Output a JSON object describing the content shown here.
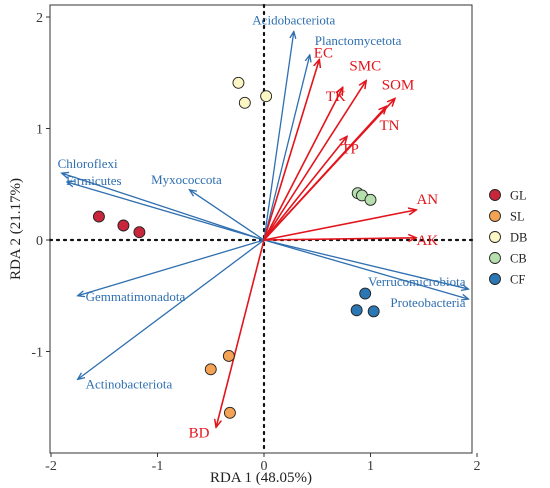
{
  "chart_data": {
    "type": "scatter",
    "xlabel": "RDA 1 (48.05%)",
    "ylabel": "RDA 2 (21.17%)",
    "xlim": [
      -2.1,
      1.95
    ],
    "ylim": [
      -1.8,
      2.05
    ],
    "xticks": [
      -2,
      -1,
      0,
      1,
      2
    ],
    "yticks": [
      -1,
      0,
      1,
      2
    ],
    "grid": false,
    "zero_lines": "dotted",
    "legend_position": "right",
    "colors": {
      "species_arrow": "#2f6fb0",
      "env_arrow": "#e3141b"
    },
    "samples": [
      {
        "name": "GL",
        "color": "#c8273b",
        "points": [
          [
            -1.55,
            0.21
          ],
          [
            -1.32,
            0.13
          ],
          [
            -1.17,
            0.07
          ]
        ]
      },
      {
        "name": "SL",
        "color": "#f4a253",
        "points": [
          [
            -0.33,
            -1.04
          ],
          [
            -0.5,
            -1.16
          ],
          [
            -0.32,
            -1.55
          ]
        ]
      },
      {
        "name": "DB",
        "color": "#fbf6c3",
        "points": [
          [
            -0.24,
            1.41
          ],
          [
            -0.18,
            1.23
          ],
          [
            0.02,
            1.29
          ]
        ]
      },
      {
        "name": "CB",
        "color": "#b5e0ad",
        "points": [
          [
            0.88,
            0.42
          ],
          [
            0.92,
            0.4
          ],
          [
            1.0,
            0.36
          ]
        ]
      },
      {
        "name": "CF",
        "color": "#2b77b3",
        "points": [
          [
            0.95,
            -0.48
          ],
          [
            0.87,
            -0.63
          ],
          [
            1.03,
            -0.64
          ]
        ]
      }
    ],
    "species_vectors": [
      {
        "name": "Acidobacteriota",
        "x": 0.28,
        "y": 1.87
      },
      {
        "name": "Planctomycetota",
        "x": 0.43,
        "y": 1.66
      },
      {
        "name": "Chloroflexi",
        "x": -1.9,
        "y": 0.6
      },
      {
        "name": "Firmicutes",
        "x": -1.85,
        "y": 0.52
      },
      {
        "name": "Myxococcota",
        "x": -0.7,
        "y": 0.45
      },
      {
        "name": "Gemmatimonadota",
        "x": -1.75,
        "y": -0.5
      },
      {
        "name": "Actinobacteriota",
        "x": -1.75,
        "y": -1.25
      },
      {
        "name": "Verrucomicrobiota",
        "x": 1.92,
        "y": -0.44
      },
      {
        "name": "Proteobacteria",
        "x": 1.92,
        "y": -0.53
      }
    ],
    "env_vectors": [
      {
        "name": "EC",
        "x": 0.52,
        "y": 1.62
      },
      {
        "name": "SMC",
        "x": 0.96,
        "y": 1.43
      },
      {
        "name": "TK",
        "x": 0.74,
        "y": 1.37
      },
      {
        "name": "SOM",
        "x": 1.23,
        "y": 1.27
      },
      {
        "name": "TN",
        "x": 1.15,
        "y": 1.2
      },
      {
        "name": "TP",
        "x": 0.78,
        "y": 0.93
      },
      {
        "name": "AN",
        "x": 1.43,
        "y": 0.27
      },
      {
        "name": "AK",
        "x": 1.43,
        "y": 0.02
      },
      {
        "name": "BD",
        "x": -0.45,
        "y": -1.68
      }
    ]
  }
}
